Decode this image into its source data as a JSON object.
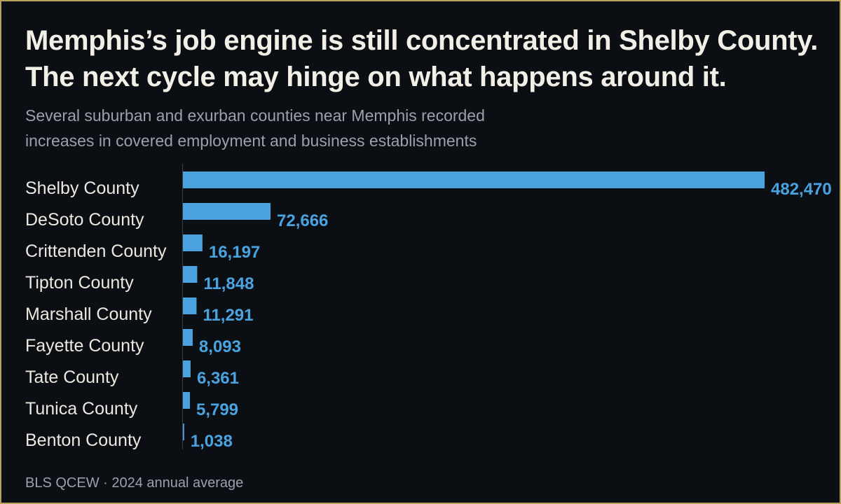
{
  "colors": {
    "background": "#0b0f14",
    "border": "#b8a25a",
    "title": "#f2efe6",
    "muted": "#9aa1aa",
    "bar": "#4aa3df",
    "value_label": "#4aa3df",
    "category_label": "#ece8df",
    "axis": "#3a4048"
  },
  "header": {
    "title": "Memphis’s job engine is still concentrated in Shelby County. The next cycle may hinge on what happens around it.",
    "subtitle": "Several suburban and exurban counties near Memphis recorded increases in covered employment and business establishments"
  },
  "footer": {
    "source": "BLS QCEW · 2024 annual average"
  },
  "chart_data": {
    "type": "bar",
    "orientation": "horizontal",
    "categories": [
      "Shelby County",
      "DeSoto County",
      "Crittenden County",
      "Tipton County",
      "Marshall County",
      "Fayette County",
      "Tate County",
      "Tunica County",
      "Benton County"
    ],
    "values": [
      482470,
      72666,
      16197,
      11848,
      11291,
      8093,
      6361,
      5799,
      1038
    ],
    "value_labels": [
      "482,470",
      "72,666",
      "16,197",
      "11,848",
      "11,291",
      "8,093",
      "6,361",
      "5,799",
      "1,038"
    ],
    "xlim": [
      0,
      482470
    ],
    "grid": false,
    "legend": "none"
  }
}
